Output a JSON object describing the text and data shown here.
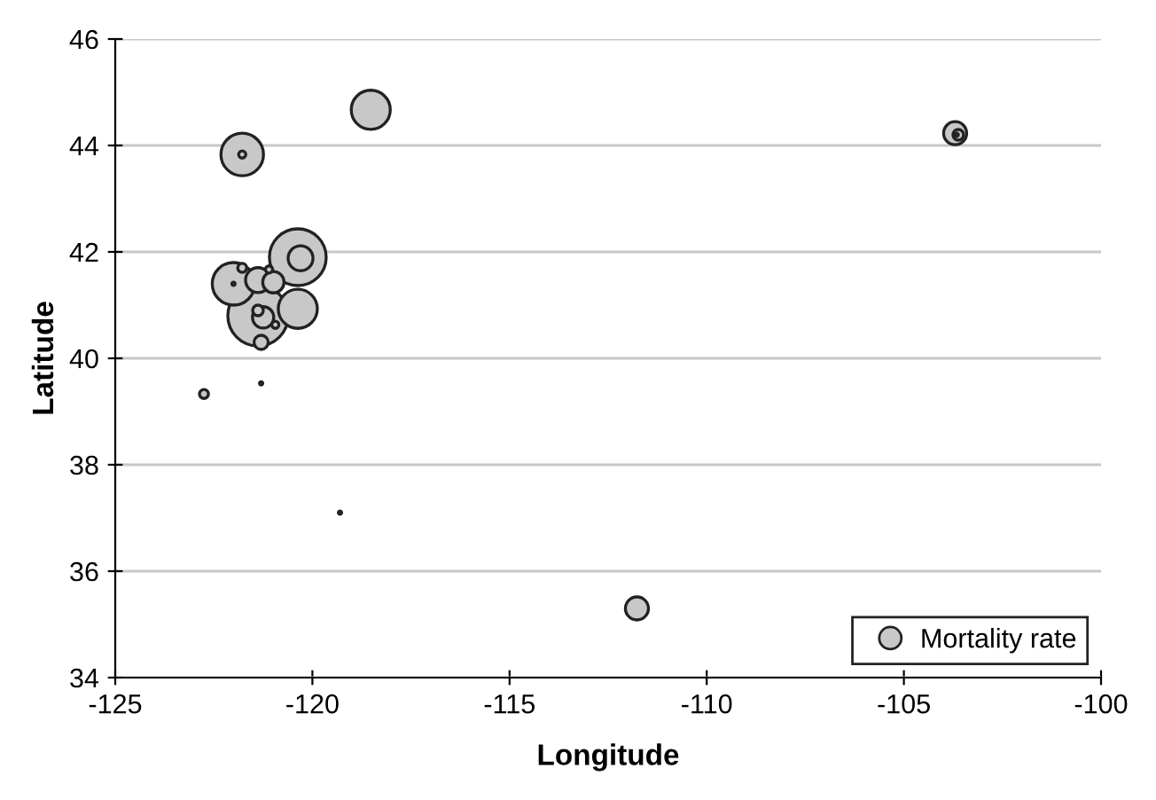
{
  "chart_data": {
    "type": "bubble",
    "xlabel": "Longitude",
    "ylabel": "Latitude",
    "xlim": [
      -125,
      -100
    ],
    "xticks": [
      -125,
      -120,
      -115,
      -110,
      -105,
      -100
    ],
    "ylim": [
      34,
      46
    ],
    "yticks": [
      34,
      36,
      38,
      40,
      42,
      44,
      46
    ],
    "grid": "y",
    "legend": "bottom right",
    "marker": "circle",
    "series": [
      {
        "name": "Mortality rate",
        "color": "#c8c8c8",
        "x": [
          -121.38,
          -120.37,
          -122.0,
          -121.78,
          -118.52,
          -120.37,
          -121.38,
          -103.7,
          -111.77,
          -120.3,
          -121.25,
          -120.99,
          -121.3,
          -103.62,
          -121.38,
          -121.78,
          -122.75,
          -121.78,
          -121.1,
          -120.94,
          -122.0,
          -121.3,
          -119.3,
          -103.66
        ],
        "values": [
          40.8,
          41.9,
          41.4,
          43.83,
          44.67,
          40.93,
          41.47,
          44.23,
          35.3,
          41.88,
          40.77,
          41.43,
          40.3,
          44.2,
          40.9,
          41.7,
          39.33,
          43.83,
          41.67,
          40.63,
          41.4,
          39.53,
          37.1,
          44.2
        ],
        "sizes": [
          1,
          0.886,
          0.498,
          0.498,
          0.419,
          0.419,
          0.17,
          0.146,
          0.146,
          0.17,
          0.125,
          0.125,
          0.055,
          0.031,
          0.031,
          0.022,
          0.022,
          0.014,
          0.014,
          0.014,
          0.003,
          0.003,
          0.003,
          0.003
        ]
      }
    ]
  }
}
